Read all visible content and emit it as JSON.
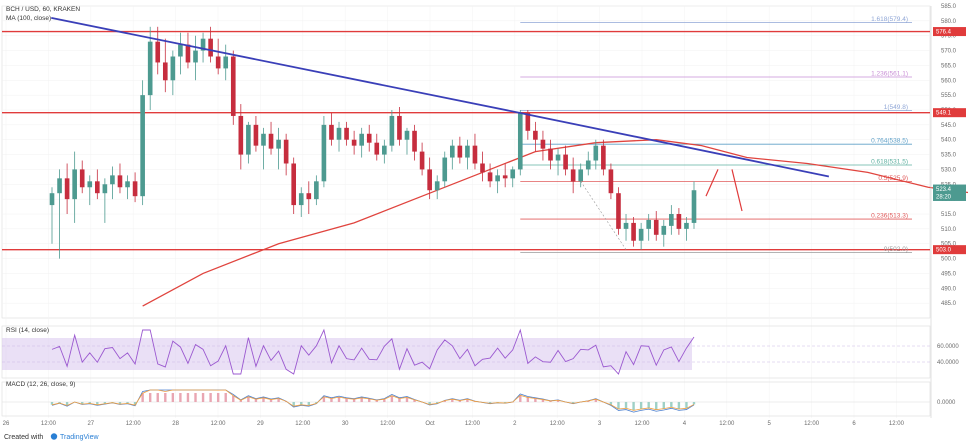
{
  "header": {
    "symbol": "BCH / USD, 60, KRAKEN",
    "indicator": "MA (100, close)"
  },
  "rsi_label": "RSI (14, close)",
  "macd_label": "MACD (12, 26, close, 9)",
  "footer": {
    "created_with": "Created with",
    "brand": "TradingView"
  },
  "colors": {
    "candle_up": "#4d9a90",
    "candle_down": "#c62d3e",
    "ma": "#e0443e",
    "trend": "#3a3fb8",
    "hline": "#e03b3b",
    "fib_blue": "#8fa6d6",
    "fib_red": "#e05b5b",
    "fib_teal": "#5fb0a0",
    "rsi_fill": "#d9c6ef",
    "rsi_line": "#9b59d0"
  },
  "chart_data": {
    "type": "candlestick",
    "price_axis": {
      "min": 480,
      "max": 585,
      "ticks": [
        "585.0",
        "580.0",
        "575.0",
        "570.0",
        "565.0",
        "560.0",
        "555.0",
        "550.0",
        "545.0",
        "540.0",
        "535.0",
        "530.0",
        "525.0",
        "520.0",
        "515.0",
        "510.0",
        "505.0",
        "500.0",
        "495.0",
        "490.0",
        "485.0"
      ]
    },
    "time_axis": [
      "26",
      "12:00",
      "27",
      "12:00",
      "28",
      "12:00",
      "29",
      "12:00",
      "30",
      "12:00",
      "Oct",
      "12:00",
      "2",
      "12:00",
      "3",
      "12:00",
      "4",
      "12:00",
      "5",
      "12:00",
      "6",
      "12:00"
    ],
    "badges": [
      {
        "label": "576.4",
        "value": 576.4,
        "color": "#e03b3b"
      },
      {
        "label": "549.1",
        "value": 549.1,
        "color": "#e03b3b"
      },
      {
        "label": "523.4",
        "value": 523.4,
        "color": "#4d9a90"
      },
      {
        "label": "28:20",
        "value": 520.9,
        "color": "#4d9a90"
      },
      {
        "label": "503.0",
        "value": 503.0,
        "color": "#e03b3b"
      }
    ],
    "horizontal_lines": [
      576.4,
      549.1,
      503.0
    ],
    "fibonacci": [
      {
        "label": "1.618(579.4)",
        "value": 579.4,
        "color": "#8fa6d6"
      },
      {
        "label": "1.236(561.1)",
        "value": 561.1,
        "color": "#c98fd6"
      },
      {
        "label": "1(549.8)",
        "value": 549.8,
        "color": "#8fa6d6"
      },
      {
        "label": "0.764(538.5)",
        "value": 538.5,
        "color": "#5fa0c8"
      },
      {
        "label": "0.618(531.5)",
        "value": 531.5,
        "color": "#5fb0a0"
      },
      {
        "label": "0.5(525.9)",
        "value": 525.9,
        "color": "#e05b5b"
      },
      {
        "label": "0.236(513.3)",
        "value": 513.3,
        "color": "#e05b5b"
      },
      {
        "label": "0(502.0)",
        "value": 502.0,
        "color": "#9a9a9a"
      }
    ],
    "rsi_axis": [
      "60.0000",
      "40.0000"
    ],
    "macd_axis": [
      "0.0000"
    ],
    "candles": [
      [
        518,
        524,
        505,
        522
      ],
      [
        522,
        530,
        500,
        527
      ],
      [
        527,
        532,
        515,
        520
      ],
      [
        520,
        536,
        512,
        530
      ],
      [
        530,
        533,
        522,
        524
      ],
      [
        524,
        528,
        518,
        526
      ],
      [
        526,
        530,
        520,
        522
      ],
      [
        522,
        527,
        512,
        525
      ],
      [
        525,
        531,
        520,
        528
      ],
      [
        528,
        532,
        522,
        524
      ],
      [
        524,
        528,
        520,
        526
      ],
      [
        526,
        529,
        519,
        521
      ],
      [
        521,
        560,
        518,
        555
      ],
      [
        555,
        578,
        550,
        573
      ],
      [
        573,
        578,
        562,
        566
      ],
      [
        566,
        574,
        556,
        560
      ],
      [
        560,
        570,
        555,
        568
      ],
      [
        568,
        576,
        562,
        572
      ],
      [
        572,
        576,
        564,
        566
      ],
      [
        566,
        575,
        560,
        570
      ],
      [
        570,
        576,
        566,
        574
      ],
      [
        574,
        578,
        566,
        568
      ],
      [
        568,
        574,
        562,
        564
      ],
      [
        564,
        572,
        560,
        568
      ],
      [
        568,
        570,
        545,
        548
      ],
      [
        548,
        552,
        530,
        535
      ],
      [
        535,
        546,
        532,
        545
      ],
      [
        545,
        548,
        536,
        538
      ],
      [
        538,
        544,
        530,
        542
      ],
      [
        542,
        546,
        535,
        537
      ],
      [
        537,
        544,
        530,
        540
      ],
      [
        540,
        542,
        528,
        532
      ],
      [
        532,
        534,
        515,
        518
      ],
      [
        518,
        524,
        514,
        522
      ],
      [
        522,
        526,
        515,
        520
      ],
      [
        520,
        528,
        518,
        526
      ],
      [
        526,
        548,
        524,
        545
      ],
      [
        545,
        549,
        538,
        540
      ],
      [
        540,
        546,
        536,
        544
      ],
      [
        544,
        546,
        538,
        540
      ],
      [
        540,
        543,
        535,
        538
      ],
      [
        538,
        544,
        534,
        542
      ],
      [
        542,
        545,
        536,
        539
      ],
      [
        539,
        542,
        533,
        535
      ],
      [
        535,
        540,
        532,
        538
      ],
      [
        538,
        550,
        536,
        548
      ],
      [
        548,
        551,
        538,
        540
      ],
      [
        540,
        544,
        535,
        543
      ],
      [
        543,
        545,
        533,
        536
      ],
      [
        536,
        539,
        528,
        530
      ],
      [
        530,
        534,
        520,
        523
      ],
      [
        523,
        528,
        520,
        526
      ],
      [
        526,
        536,
        524,
        534
      ],
      [
        534,
        540,
        530,
        538
      ],
      [
        538,
        541,
        532,
        534
      ],
      [
        534,
        540,
        530,
        538
      ],
      [
        538,
        542,
        530,
        532
      ],
      [
        532,
        536,
        526,
        529
      ],
      [
        529,
        532,
        524,
        526
      ],
      [
        526,
        530,
        522,
        528
      ],
      [
        528,
        532,
        524,
        527
      ],
      [
        527,
        531,
        524,
        530
      ],
      [
        530,
        550,
        528,
        549
      ],
      [
        549,
        550,
        540,
        543
      ],
      [
        543,
        546,
        536,
        540
      ],
      [
        540,
        543,
        533,
        537
      ],
      [
        537,
        540,
        530,
        533
      ],
      [
        533,
        537,
        528,
        535
      ],
      [
        535,
        538,
        528,
        530
      ],
      [
        530,
        534,
        522,
        526
      ],
      [
        526,
        532,
        524,
        530
      ],
      [
        530,
        536,
        528,
        533
      ],
      [
        533,
        540,
        530,
        538
      ],
      [
        538,
        540,
        528,
        530
      ],
      [
        530,
        532,
        520,
        522
      ],
      [
        522,
        524,
        508,
        510
      ],
      [
        510,
        515,
        506,
        512
      ],
      [
        512,
        514,
        504,
        506
      ],
      [
        506,
        512,
        503,
        510
      ],
      [
        510,
        515,
        506,
        513
      ],
      [
        513,
        516,
        506,
        508
      ],
      [
        508,
        513,
        504,
        511
      ],
      [
        511,
        518,
        508,
        515
      ],
      [
        515,
        517,
        508,
        510
      ],
      [
        510,
        514,
        506,
        512
      ],
      [
        512,
        526,
        510,
        523
      ]
    ],
    "ma_line": [
      [
        12,
        484
      ],
      [
        20,
        495
      ],
      [
        30,
        505
      ],
      [
        40,
        512
      ],
      [
        50,
        522
      ],
      [
        58,
        530
      ],
      [
        64,
        536
      ],
      [
        72,
        539
      ],
      [
        80,
        540
      ],
      [
        86,
        538
      ],
      [
        92,
        534
      ],
      [
        100,
        532
      ],
      [
        108,
        529
      ],
      [
        116,
        524
      ],
      [
        122,
        522
      ]
    ],
    "trendlines": [
      {
        "from": [
          -0.1,
          581
        ],
        "to": [
          62,
          549
        ]
      },
      {
        "from": [
          62,
          549
        ],
        "to": [
          92,
          533
        ]
      }
    ],
    "projection": [
      [
        90,
        522
      ],
      [
        94,
        530
      ],
      [
        98,
        532
      ],
      [
        102,
        518
      ]
    ],
    "projection_end": 120
  }
}
